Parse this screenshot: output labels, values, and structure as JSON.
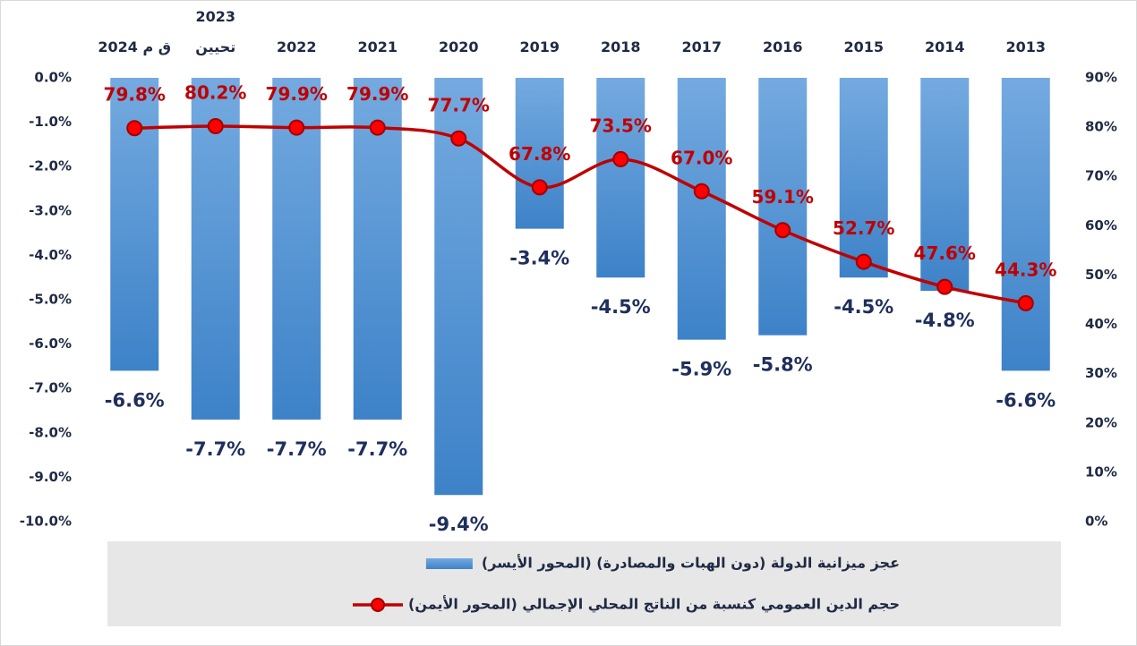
{
  "chart_data": {
    "type": "bar",
    "categories": [
      "2024 ق م",
      "2023\nتحيين",
      "2022",
      "2021",
      "2020",
      "2019",
      "2018",
      "2017",
      "2016",
      "2015",
      "2014",
      "2013"
    ],
    "series": [
      {
        "name": "عجز ميزانية الدولة (دون الهبات والمصادرة) (المحور الأيسر)",
        "type": "bar",
        "color": "#4a8fd4",
        "values": [
          -6.6,
          -7.7,
          -7.7,
          -7.7,
          -9.4,
          -3.4,
          -4.5,
          -5.9,
          -5.8,
          -4.5,
          -4.8,
          -6.6
        ],
        "value_labels": [
          "-6.6%",
          "-7.7%",
          "-7.7%",
          "-7.7%",
          "-9.4%",
          "-3.4%",
          "-4.5%",
          "-5.9%",
          "-5.8%",
          "-4.5%",
          "-4.8%",
          "-6.6%"
        ]
      },
      {
        "name": "حجم الدين العمومي كنسبة من الناتج المحلي الإجمالي (المحور الأيمن)",
        "type": "line",
        "axis": "y2",
        "color": "#c00000",
        "values": [
          79.8,
          80.2,
          79.9,
          79.9,
          77.7,
          67.8,
          73.5,
          67.0,
          59.1,
          52.7,
          47.6,
          44.3
        ],
        "value_labels": [
          "79.8%",
          "80.2%",
          "79.9%",
          "79.9%",
          "77.7%",
          "67.8%",
          "73.5%",
          "67.0%",
          "59.1%",
          "52.7%",
          "47.6%",
          "44.3%"
        ]
      }
    ],
    "ylim": [
      -10,
      0
    ],
    "yticks": [
      {
        "value": 0,
        "label": "0.0%"
      },
      {
        "value": -1,
        "label": "-1.0%"
      },
      {
        "value": -2,
        "label": "-2.0%"
      },
      {
        "value": -3,
        "label": "-3.0%"
      },
      {
        "value": -4,
        "label": "-4.0%"
      },
      {
        "value": -5,
        "label": "-5.0%"
      },
      {
        "value": -6,
        "label": "-6.0%"
      },
      {
        "value": -7,
        "label": "-7.0%"
      },
      {
        "value": -8,
        "label": "-8.0%"
      },
      {
        "value": -9,
        "label": "-9.0%"
      },
      {
        "value": -10,
        "label": "-10.0%"
      }
    ],
    "y2lim": [
      0,
      90
    ],
    "y2ticks": [
      {
        "value": 0,
        "label": "0%"
      },
      {
        "value": 10,
        "label": "10%"
      },
      {
        "value": 20,
        "label": "20%"
      },
      {
        "value": 30,
        "label": "30%"
      },
      {
        "value": 40,
        "label": "40%"
      },
      {
        "value": 50,
        "label": "50%"
      },
      {
        "value": 60,
        "label": "60%"
      },
      {
        "value": 70,
        "label": "70%"
      },
      {
        "value": 80,
        "label": "80%"
      },
      {
        "value": 90,
        "label": "90%"
      }
    ],
    "legend": "bottom"
  }
}
